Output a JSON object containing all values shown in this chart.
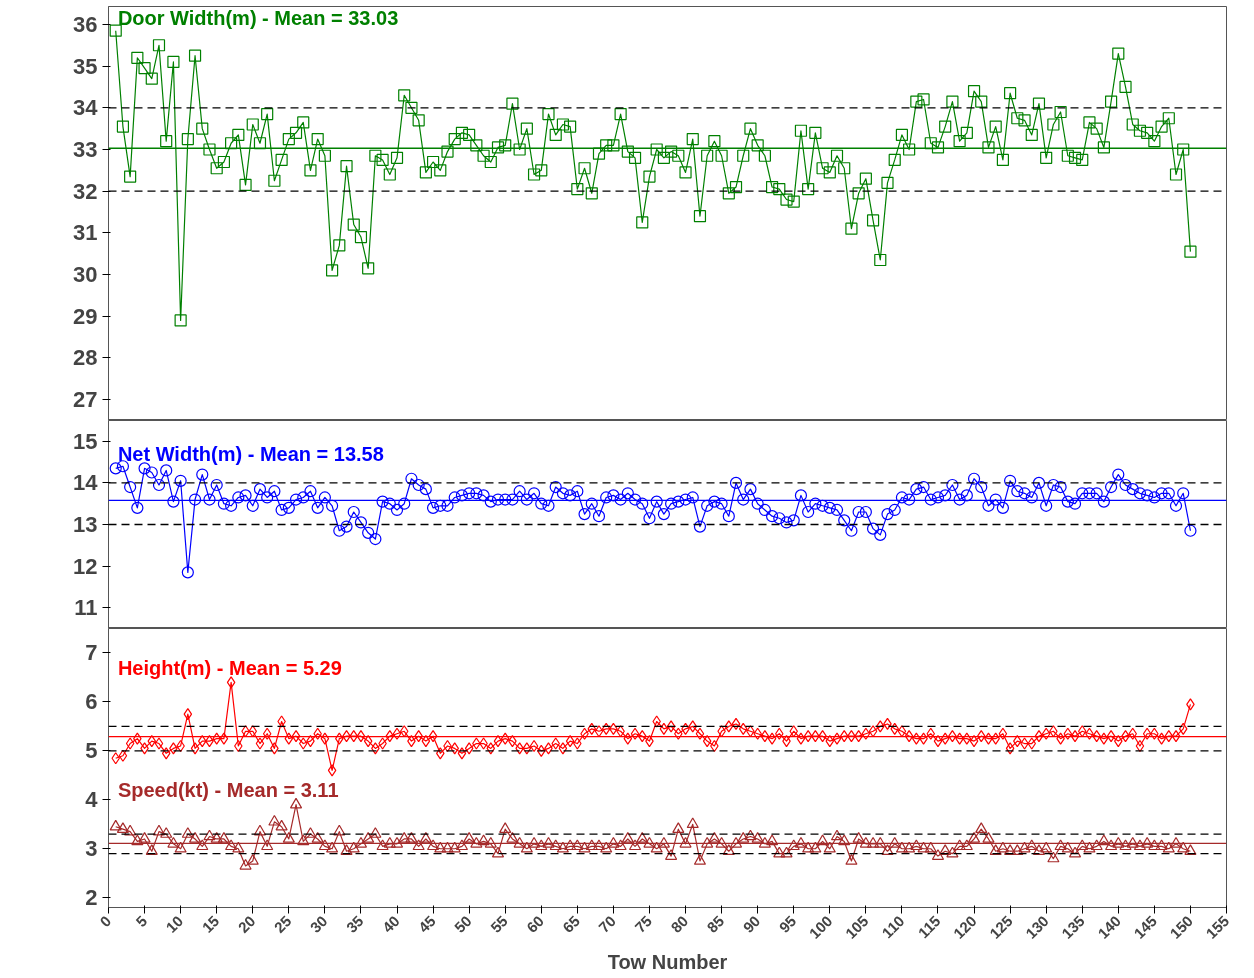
{
  "chart_data": [
    {
      "type": "line",
      "xlim": [
        0,
        155
      ],
      "xticks": [
        0,
        5,
        10,
        15,
        20,
        25,
        30,
        35,
        40,
        45,
        50,
        55,
        60,
        65,
        70,
        75,
        80,
        85,
        90,
        95,
        100,
        105,
        110,
        115,
        120,
        125,
        130,
        135,
        140,
        145,
        150,
        155
      ],
      "ylim": [
        26.5,
        36.43
      ],
      "yticks": [
        27,
        28,
        29,
        30,
        31,
        32,
        33,
        34,
        35,
        36
      ],
      "tick_labels": "y",
      "grid": false,
      "x": [
        1,
        2,
        3,
        4,
        5,
        6,
        7,
        8,
        9,
        10,
        11,
        12,
        13,
        14,
        15,
        16,
        17,
        18,
        19,
        20,
        21,
        22,
        23,
        24,
        25,
        26,
        27,
        28,
        29,
        30,
        31,
        32,
        33,
        34,
        35,
        36,
        37,
        38,
        39,
        40,
        41,
        42,
        43,
        44,
        45,
        46,
        47,
        48,
        49,
        50,
        51,
        52,
        53,
        54,
        55,
        56,
        57,
        58,
        59,
        60,
        61,
        62,
        63,
        64,
        65,
        66,
        67,
        68,
        69,
        70,
        71,
        72,
        73,
        74,
        75,
        76,
        77,
        78,
        79,
        80,
        81,
        82,
        83,
        84,
        85,
        86,
        87,
        88,
        89,
        90,
        91,
        92,
        93,
        94,
        95,
        96,
        97,
        98,
        99,
        100,
        101,
        102,
        103,
        104,
        105,
        106,
        107,
        108,
        109,
        110,
        111,
        112,
        113,
        114,
        115,
        116,
        117,
        118,
        119,
        120,
        121,
        122,
        123,
        124,
        125,
        126,
        127,
        128,
        129,
        130,
        131,
        132,
        133,
        134,
        135,
        136,
        137,
        138,
        139,
        140,
        141,
        142,
        143,
        144,
        145,
        146,
        147,
        148,
        149,
        150
      ],
      "series": [
        {
          "name": "Door Width(m) - Mean = 33.03",
          "color": "#008000",
          "marker": "square",
          "values": [
            35.85,
            33.55,
            32.35,
            35.2,
            34.95,
            34.7,
            35.5,
            33.2,
            35.1,
            28.9,
            33.25,
            35.25,
            33.5,
            33.0,
            32.55,
            32.7,
            33.15,
            33.35,
            32.15,
            33.6,
            33.15,
            33.85,
            32.25,
            32.75,
            33.25,
            33.4,
            33.65,
            32.5,
            33.25,
            32.85,
            30.1,
            30.7,
            32.6,
            31.2,
            30.9,
            30.15,
            32.85,
            32.75,
            32.4,
            32.8,
            34.3,
            34.0,
            33.7,
            32.45,
            32.7,
            32.5,
            32.95,
            33.25,
            33.4,
            33.35,
            33.1,
            32.85,
            32.7,
            33.05,
            33.1,
            34.1,
            33.0,
            33.5,
            32.4,
            32.5,
            33.85,
            33.35,
            33.6,
            33.55,
            32.05,
            32.55,
            31.95,
            32.9,
            33.1,
            33.1,
            33.85,
            32.95,
            32.8,
            31.25,
            32.35,
            33.0,
            32.8,
            32.95,
            32.85,
            32.45,
            33.25,
            31.4,
            32.85,
            33.2,
            32.85,
            31.95,
            32.1,
            32.85,
            33.5,
            33.1,
            32.85,
            32.1,
            32.05,
            31.8,
            31.75,
            33.45,
            32.05,
            33.4,
            32.55,
            32.45,
            32.85,
            32.55,
            31.1,
            31.95,
            32.3,
            31.3,
            30.35,
            32.2,
            32.75,
            33.35,
            33.0,
            34.15,
            34.2,
            33.15,
            33.05,
            33.55,
            34.15,
            33.2,
            33.4,
            34.4,
            34.15,
            33.05,
            33.55,
            32.75,
            34.35,
            33.75,
            33.7,
            33.35,
            34.1,
            32.8,
            33.6,
            33.9,
            32.85,
            32.8,
            32.75,
            33.65,
            33.5,
            33.05,
            34.15,
            35.3,
            34.5,
            33.6,
            33.45,
            33.4,
            33.2,
            33.55,
            33.75,
            32.4,
            33.0,
            30.55
          ]
        }
      ],
      "ref_lines": [
        {
          "axis": "y",
          "value": 33.03,
          "color": "#008000",
          "line_style": "solid"
        },
        {
          "axis": "y",
          "value": 34,
          "color": "#000000",
          "line_style": "dashed"
        },
        {
          "axis": "y",
          "value": 32,
          "color": "#000000",
          "line_style": "dashed"
        }
      ]
    },
    {
      "type": "line",
      "xlim": [
        0,
        155
      ],
      "xticks": [
        0,
        5,
        10,
        15,
        20,
        25,
        30,
        35,
        40,
        45,
        50,
        55,
        60,
        65,
        70,
        75,
        80,
        85,
        90,
        95,
        100,
        105,
        110,
        115,
        120,
        125,
        130,
        135,
        140,
        145,
        150,
        155
      ],
      "ylim": [
        10.5,
        15.5
      ],
      "yticks": [
        11,
        12,
        13,
        14,
        15
      ],
      "tick_labels": "y",
      "grid": false,
      "x": [
        1,
        2,
        3,
        4,
        5,
        6,
        7,
        8,
        9,
        10,
        11,
        12,
        13,
        14,
        15,
        16,
        17,
        18,
        19,
        20,
        21,
        22,
        23,
        24,
        25,
        26,
        27,
        28,
        29,
        30,
        31,
        32,
        33,
        34,
        35,
        36,
        37,
        38,
        39,
        40,
        41,
        42,
        43,
        44,
        45,
        46,
        47,
        48,
        49,
        50,
        51,
        52,
        53,
        54,
        55,
        56,
        57,
        58,
        59,
        60,
        61,
        62,
        63,
        64,
        65,
        66,
        67,
        68,
        69,
        70,
        71,
        72,
        73,
        74,
        75,
        76,
        77,
        78,
        79,
        80,
        81,
        82,
        83,
        84,
        85,
        86,
        87,
        88,
        89,
        90,
        91,
        92,
        93,
        94,
        95,
        96,
        97,
        98,
        99,
        100,
        101,
        102,
        103,
        104,
        105,
        106,
        107,
        108,
        109,
        110,
        111,
        112,
        113,
        114,
        115,
        116,
        117,
        118,
        119,
        120,
        121,
        122,
        123,
        124,
        125,
        126,
        127,
        128,
        129,
        130,
        131,
        132,
        133,
        134,
        135,
        136,
        137,
        138,
        139,
        140,
        141,
        142,
        143,
        144,
        145,
        146,
        147,
        148,
        149,
        150
      ],
      "series": [
        {
          "name": "Net Width(m) - Mean = 13.58",
          "color": "#0000ff",
          "marker": "circle",
          "values": [
            14.35,
            14.4,
            13.9,
            13.4,
            14.35,
            14.25,
            13.95,
            14.3,
            13.55,
            14.05,
            11.85,
            13.6,
            14.2,
            13.6,
            13.95,
            13.5,
            13.45,
            13.65,
            13.7,
            13.45,
            13.85,
            13.65,
            13.8,
            13.35,
            13.4,
            13.6,
            13.65,
            13.8,
            13.4,
            13.65,
            13.45,
            12.85,
            12.95,
            13.3,
            13.05,
            12.8,
            12.65,
            13.55,
            13.5,
            13.35,
            13.5,
            14.1,
            13.95,
            13.85,
            13.4,
            13.45,
            13.45,
            13.65,
            13.7,
            13.75,
            13.75,
            13.7,
            13.55,
            13.6,
            13.6,
            13.6,
            13.8,
            13.6,
            13.75,
            13.5,
            13.45,
            13.9,
            13.75,
            13.7,
            13.8,
            13.25,
            13.5,
            13.2,
            13.65,
            13.7,
            13.6,
            13.75,
            13.6,
            13.5,
            13.15,
            13.55,
            13.25,
            13.5,
            13.55,
            13.6,
            13.65,
            12.95,
            13.45,
            13.55,
            13.5,
            13.2,
            14.0,
            13.6,
            13.85,
            13.5,
            13.35,
            13.2,
            13.15,
            13.05,
            13.1,
            13.7,
            13.3,
            13.5,
            13.45,
            13.4,
            13.35,
            13.1,
            12.85,
            13.3,
            13.3,
            12.9,
            12.75,
            13.25,
            13.35,
            13.65,
            13.6,
            13.85,
            13.9,
            13.6,
            13.65,
            13.7,
            13.95,
            13.6,
            13.7,
            14.1,
            13.9,
            13.45,
            13.6,
            13.4,
            14.05,
            13.8,
            13.75,
            13.65,
            14.0,
            13.45,
            13.95,
            13.9,
            13.55,
            13.5,
            13.75,
            13.75,
            13.75,
            13.55,
            13.9,
            14.2,
            13.95,
            13.85,
            13.75,
            13.7,
            13.65,
            13.75,
            13.75,
            13.45,
            13.75,
            12.85
          ]
        }
      ],
      "ref_lines": [
        {
          "axis": "y",
          "value": 13.58,
          "color": "#0000ff",
          "line_style": "solid"
        },
        {
          "axis": "y",
          "value": 14,
          "color": "#000000",
          "line_style": "dashed"
        },
        {
          "axis": "y",
          "value": 13,
          "color": "#000000",
          "line_style": "dashed"
        }
      ]
    },
    {
      "type": "line",
      "xlabel": "Tow Number",
      "xlim": [
        0,
        155
      ],
      "xticks": [
        0,
        5,
        10,
        15,
        20,
        25,
        30,
        35,
        40,
        45,
        50,
        55,
        60,
        65,
        70,
        75,
        80,
        85,
        90,
        95,
        100,
        105,
        110,
        115,
        120,
        125,
        130,
        135,
        140,
        145,
        150,
        155
      ],
      "ylim": [
        1.8,
        7.5
      ],
      "yticks": [
        2,
        3,
        4,
        5,
        6,
        7
      ],
      "grid": false,
      "x": [
        1,
        2,
        3,
        4,
        5,
        6,
        7,
        8,
        9,
        10,
        11,
        12,
        13,
        14,
        15,
        16,
        17,
        18,
        19,
        20,
        21,
        22,
        23,
        24,
        25,
        26,
        27,
        28,
        29,
        30,
        31,
        32,
        33,
        34,
        35,
        36,
        37,
        38,
        39,
        40,
        41,
        42,
        43,
        44,
        45,
        46,
        47,
        48,
        49,
        50,
        51,
        52,
        53,
        54,
        55,
        56,
        57,
        58,
        59,
        60,
        61,
        62,
        63,
        64,
        65,
        66,
        67,
        68,
        69,
        70,
        71,
        72,
        73,
        74,
        75,
        76,
        77,
        78,
        79,
        80,
        81,
        82,
        83,
        84,
        85,
        86,
        87,
        88,
        89,
        90,
        91,
        92,
        93,
        94,
        95,
        96,
        97,
        98,
        99,
        100,
        101,
        102,
        103,
        104,
        105,
        106,
        107,
        108,
        109,
        110,
        111,
        112,
        113,
        114,
        115,
        116,
        117,
        118,
        119,
        120,
        121,
        122,
        123,
        124,
        125,
        126,
        127,
        128,
        129,
        130,
        131,
        132,
        133,
        134,
        135,
        136,
        137,
        138,
        139,
        140,
        141,
        142,
        143,
        144,
        145,
        146,
        147,
        148,
        149,
        150
      ],
      "series": [
        {
          "name": "Height(m) - Mean = 5.29",
          "color": "#ff0000",
          "marker": "diamond",
          "values": [
            4.85,
            4.9,
            5.15,
            5.25,
            5.05,
            5.2,
            5.15,
            4.95,
            5.05,
            5.1,
            5.75,
            5.05,
            5.2,
            5.2,
            5.25,
            5.25,
            6.4,
            5.1,
            5.4,
            5.4,
            5.15,
            5.35,
            5.05,
            5.6,
            5.25,
            5.3,
            5.15,
            5.2,
            5.35,
            5.25,
            4.6,
            5.25,
            5.3,
            5.3,
            5.3,
            5.2,
            5.05,
            5.15,
            5.3,
            5.35,
            5.4,
            5.2,
            5.3,
            5.2,
            5.3,
            4.95,
            5.1,
            5.05,
            4.95,
            5.05,
            5.15,
            5.15,
            5.05,
            5.2,
            5.25,
            5.2,
            5.05,
            5.05,
            5.1,
            5.0,
            5.05,
            5.15,
            5.05,
            5.2,
            5.15,
            5.35,
            5.45,
            5.4,
            5.45,
            5.45,
            5.4,
            5.25,
            5.35,
            5.3,
            5.2,
            5.6,
            5.45,
            5.5,
            5.35,
            5.45,
            5.5,
            5.35,
            5.2,
            5.1,
            5.4,
            5.5,
            5.55,
            5.45,
            5.4,
            5.35,
            5.3,
            5.25,
            5.35,
            5.2,
            5.4,
            5.25,
            5.3,
            5.3,
            5.3,
            5.2,
            5.25,
            5.3,
            5.3,
            5.3,
            5.35,
            5.4,
            5.5,
            5.55,
            5.45,
            5.4,
            5.3,
            5.25,
            5.25,
            5.35,
            5.2,
            5.25,
            5.3,
            5.25,
            5.25,
            5.2,
            5.3,
            5.25,
            5.25,
            5.35,
            5.05,
            5.2,
            5.15,
            5.15,
            5.3,
            5.35,
            5.4,
            5.25,
            5.35,
            5.3,
            5.4,
            5.35,
            5.3,
            5.25,
            5.3,
            5.2,
            5.3,
            5.35,
            5.1,
            5.35,
            5.35,
            5.25,
            5.3,
            5.3,
            5.45,
            5.95
          ]
        },
        {
          "name": "Speed(kt) - Mean = 3.11",
          "color": "#a52a2a",
          "marker": "triangle",
          "values": [
            3.45,
            3.4,
            3.35,
            3.15,
            3.2,
            2.95,
            3.35,
            3.3,
            3.1,
            3.0,
            3.3,
            3.2,
            3.05,
            3.25,
            3.2,
            3.2,
            3.05,
            3.0,
            2.65,
            2.75,
            3.35,
            3.05,
            3.55,
            3.45,
            3.2,
            3.9,
            3.15,
            3.3,
            3.2,
            3.05,
            3.0,
            3.35,
            2.95,
            3.0,
            3.1,
            3.2,
            3.3,
            3.05,
            3.1,
            3.1,
            3.2,
            3.2,
            3.05,
            3.2,
            3.05,
            3.0,
            3.0,
            3.0,
            3.05,
            3.2,
            3.1,
            3.15,
            3.1,
            2.9,
            3.4,
            3.2,
            3.1,
            3.0,
            3.1,
            3.05,
            3.1,
            3.05,
            3.0,
            3.05,
            3.05,
            3.0,
            3.05,
            3.05,
            3.0,
            3.1,
            3.05,
            3.2,
            3.05,
            3.2,
            3.1,
            3.0,
            3.1,
            2.85,
            3.4,
            3.1,
            3.5,
            2.75,
            3.1,
            3.2,
            3.1,
            2.95,
            3.1,
            3.2,
            3.25,
            3.2,
            3.1,
            3.15,
            2.9,
            2.9,
            3.05,
            3.1,
            3.0,
            3.0,
            3.15,
            3.0,
            3.25,
            3.15,
            2.75,
            3.2,
            3.1,
            3.1,
            3.1,
            2.95,
            3.1,
            3.0,
            3.0,
            3.05,
            3.0,
            3.0,
            2.85,
            2.95,
            2.9,
            3.05,
            3.05,
            3.2,
            3.4,
            3.2,
            2.95,
            3.0,
            2.95,
            2.95,
            3.0,
            3.05,
            2.95,
            3.0,
            2.8,
            3.05,
            3.0,
            2.9,
            3.05,
            3.0,
            3.05,
            3.15,
            3.05,
            3.1,
            3.05,
            3.1,
            3.05,
            3.1,
            3.05,
            3.05,
            3.0,
            3.1,
            3.0,
            2.95
          ]
        }
      ],
      "ref_lines": [
        {
          "axis": "y",
          "value": 5.29,
          "color": "#ff0000",
          "line_style": "solid"
        },
        {
          "axis": "y",
          "value": 5.5,
          "color": "#000000",
          "line_style": "dashed"
        },
        {
          "axis": "y",
          "value": 5.0,
          "color": "#000000",
          "line_style": "dashed"
        },
        {
          "axis": "y",
          "value": 3.11,
          "color": "#a52a2a",
          "line_style": "solid"
        },
        {
          "axis": "y",
          "value": 3.3,
          "color": "#000000",
          "line_style": "dashed"
        },
        {
          "axis": "y",
          "value": 2.9,
          "color": "#000000",
          "line_style": "dashed"
        }
      ]
    }
  ]
}
